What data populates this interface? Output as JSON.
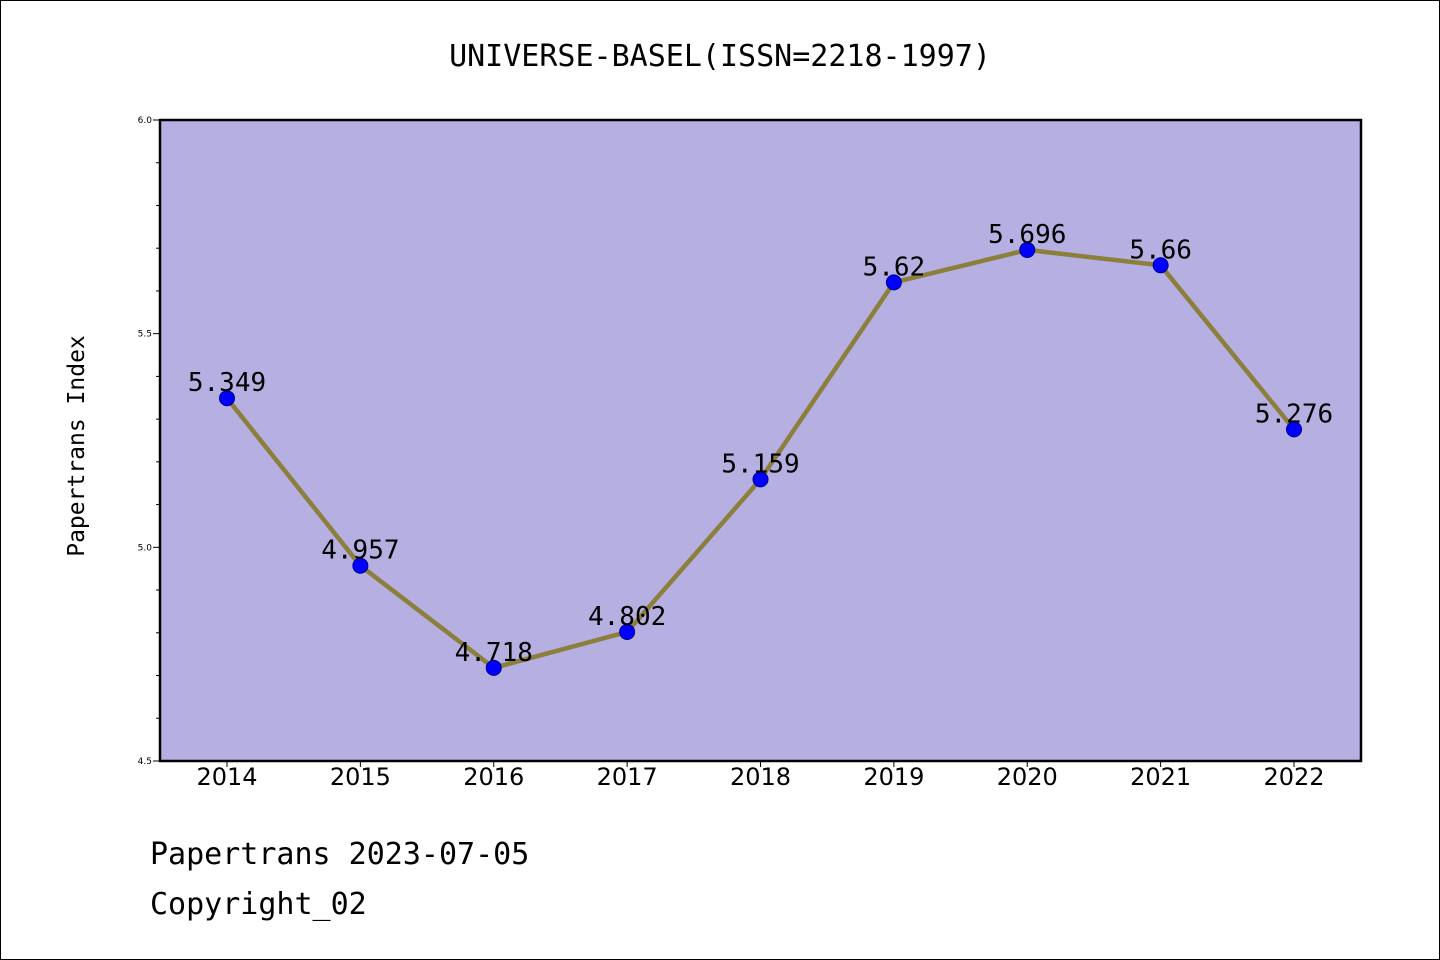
{
  "chart_data": {
    "type": "line",
    "title": "UNIVERSE-BASEL(ISSN=2218-1997)",
    "xlabel": "",
    "ylabel": "Papertrans Index",
    "categories": [
      "2014",
      "2015",
      "2016",
      "2017",
      "2018",
      "2019",
      "2020",
      "2021",
      "2022"
    ],
    "values": [
      5.349,
      4.957,
      4.718,
      4.802,
      5.159,
      5.62,
      5.696,
      5.66,
      5.276
    ],
    "data_labels": [
      "5.349",
      "4.957",
      "4.718",
      "4.802",
      "5.159",
      "5.62",
      "5.696",
      "5.66",
      "5.276"
    ],
    "ylim": [
      4.5,
      6.0
    ],
    "yticks": [
      "4.5",
      "5.0",
      "5.5",
      "6.0"
    ],
    "grid": false,
    "colors": {
      "plot_background": "#b5afe2",
      "line": "#8c7f3c",
      "marker": "#0000ff"
    }
  },
  "footer": {
    "line1": "Papertrans 2023-07-05",
    "line2": "Copyright_02"
  }
}
